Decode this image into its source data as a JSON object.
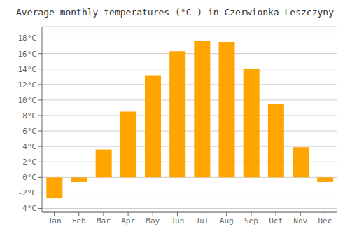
{
  "chart_data": {
    "type": "bar",
    "title": "Average monthly temperatures (°C ) in Czerwionka-Leszczyny",
    "categories": [
      "Jan",
      "Feb",
      "Mar",
      "Apr",
      "May",
      "Jun",
      "Jul",
      "Aug",
      "Sep",
      "Oct",
      "Nov",
      "Dec"
    ],
    "values": [
      -2.7,
      -0.6,
      3.6,
      8.5,
      13.2,
      16.3,
      17.7,
      17.5,
      14.0,
      9.5,
      3.9,
      -0.6
    ],
    "color": "#FFA500",
    "ylim": [
      -4.5,
      19.5
    ],
    "yticks": [
      {
        "value": -4,
        "label": "-4°C"
      },
      {
        "value": -2,
        "label": "-2°C"
      },
      {
        "value": 0,
        "label": "0°C"
      },
      {
        "value": 2,
        "label": "2°C"
      },
      {
        "value": 4,
        "label": "4°C"
      },
      {
        "value": 6,
        "label": "6°C"
      },
      {
        "value": 8,
        "label": "8°C"
      },
      {
        "value": 10,
        "label": "10°C"
      },
      {
        "value": 12,
        "label": "12°C"
      },
      {
        "value": 14,
        "label": "14°C"
      },
      {
        "value": 16,
        "label": "16°C"
      },
      {
        "value": 18,
        "label": "18°C"
      }
    ],
    "grid": true
  }
}
